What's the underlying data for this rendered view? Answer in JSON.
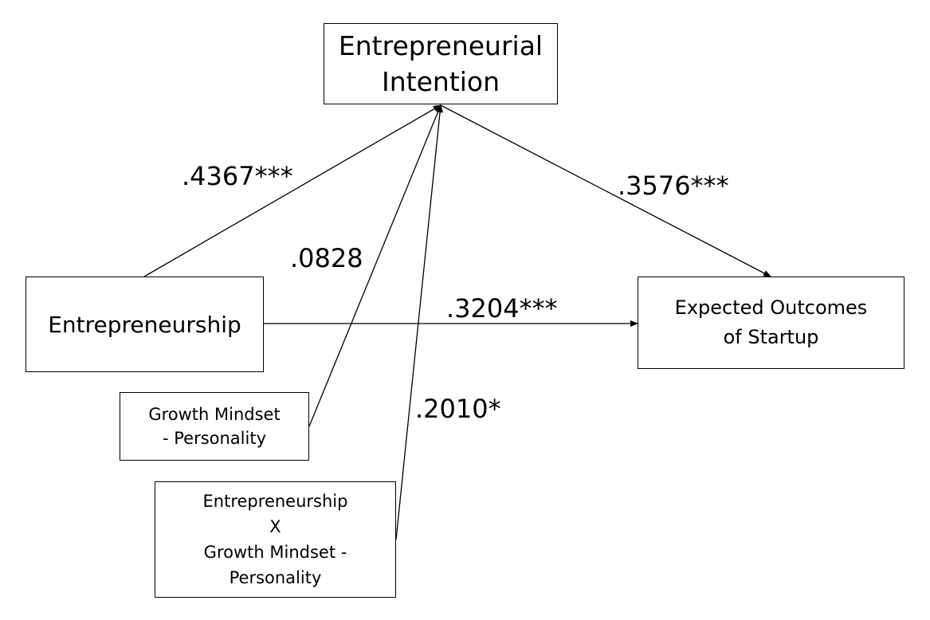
{
  "nodes": {
    "entrepreneurial_intention": {
      "lines": [
        "Entrepreneurial",
        "Intention"
      ]
    },
    "entrepreneurship": {
      "lines": [
        "Entrepreneurship"
      ]
    },
    "expected_outcomes": {
      "lines": [
        "Expected Outcomes",
        "of Startup"
      ]
    },
    "growth_mindset": {
      "lines": [
        "Growth Mindset",
        "- Personality"
      ]
    },
    "interaction": {
      "lines": [
        "Entrepreneurship",
        "X",
        "Growth Mindset -",
        "Personality"
      ]
    }
  },
  "paths": {
    "entrepreneurship_to_intention": ".4367***",
    "growth_mindset_to_intention": ".0828",
    "intention_to_outcomes": ".3576***",
    "entrepreneurship_to_outcomes": ".3204***",
    "interaction_to_intention": ".2010*"
  }
}
